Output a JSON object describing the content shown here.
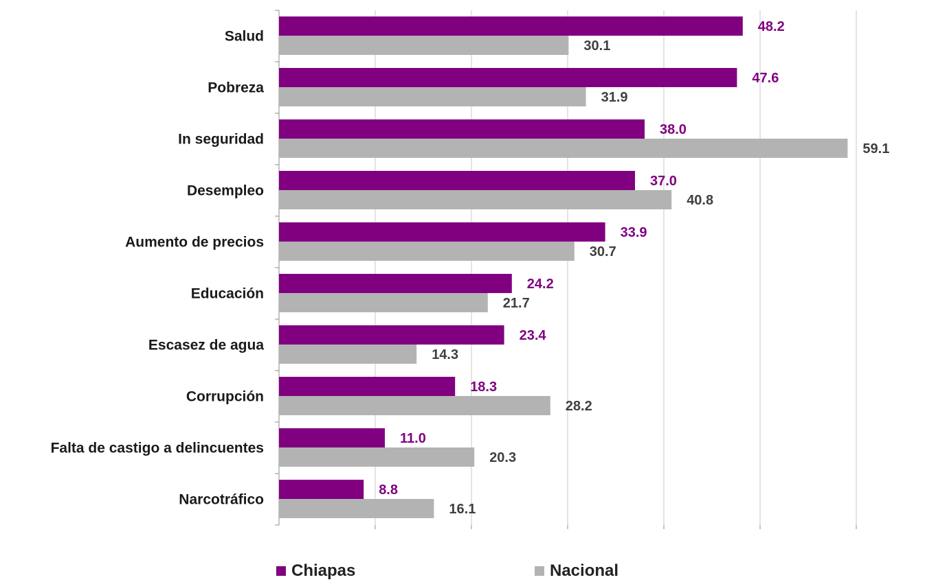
{
  "chart_data": {
    "type": "bar",
    "orientation": "horizontal",
    "categories": [
      "Salud",
      "Pobreza",
      "In seguridad",
      "Desempleo",
      "Aumento de precios",
      "Educación",
      "Escasez de agua",
      "Corrupción",
      "Falta de castigo a delincuentes",
      "Narcotráfico"
    ],
    "series": [
      {
        "name": "Chiapas",
        "color": "#800080",
        "label_color": "#800080",
        "values": [
          48.2,
          47.6,
          38.0,
          37.0,
          33.9,
          24.2,
          23.4,
          18.3,
          11.0,
          8.8
        ],
        "labels": [
          "48.2",
          "47.6",
          "38.0",
          "37.0",
          "33.9",
          "24.2",
          "23.4",
          "18.3",
          "11.0",
          "8.8"
        ]
      },
      {
        "name": "Nacional",
        "color": "#b3b3b3",
        "label_color": "#404040",
        "values": [
          30.1,
          31.9,
          59.1,
          40.8,
          30.7,
          21.7,
          14.3,
          28.2,
          20.3,
          16.1
        ],
        "labels": [
          "30.1",
          "31.9",
          "59.1",
          "40.8",
          "30.7",
          "21.7",
          "14.3",
          "28.2",
          "20.3",
          "16.1"
        ]
      }
    ],
    "xlim": [
      0,
      60
    ],
    "grid": true,
    "legend_position": "bottom"
  }
}
